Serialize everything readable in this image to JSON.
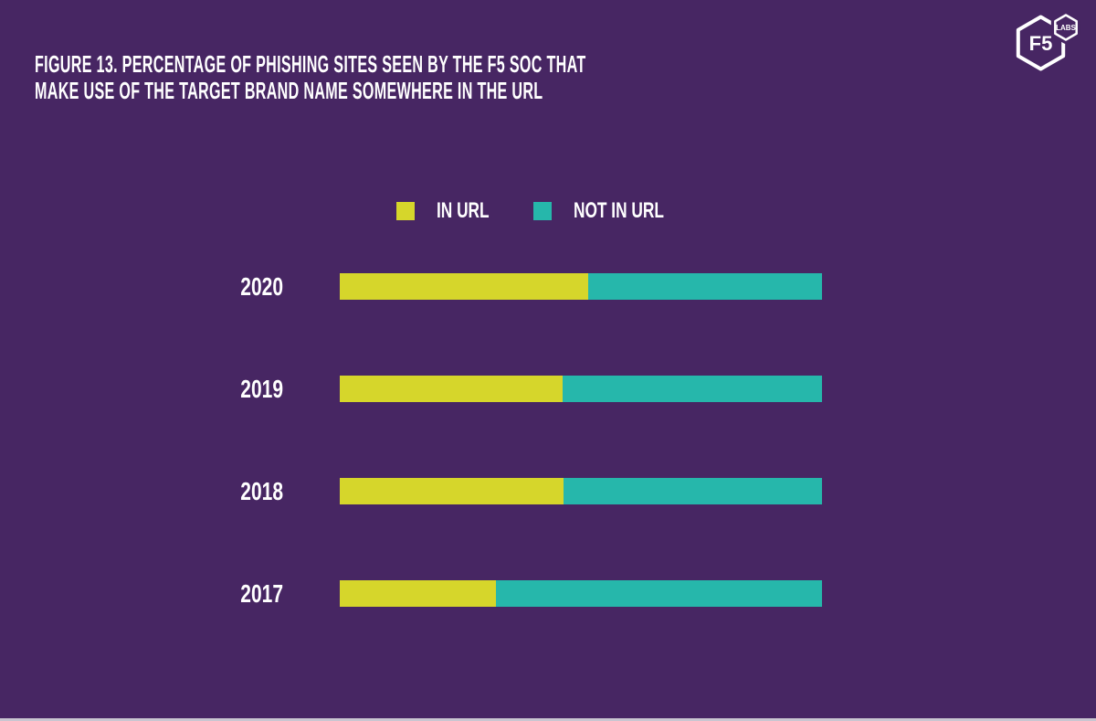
{
  "page": {
    "background_color": "#472663",
    "bottom_edge_color": "#c9c6d1",
    "text_color": "#ffffff"
  },
  "header": {
    "title_line1": "FIGURE 13. PERCENTAGE OF PHISHING SITES SEEN BY THE F5 SOC THAT",
    "title_line2": "MAKE USE OF THE TARGET BRAND NAME SOMEWHERE IN THE URL"
  },
  "logo": {
    "primary_text": "F5",
    "secondary_text": "LABS"
  },
  "legend": {
    "items": [
      {
        "label": "IN URL",
        "color": "#d6d62b"
      },
      {
        "label": "NOT IN URL",
        "color": "#26b7ab"
      }
    ]
  },
  "chart_data": {
    "type": "bar",
    "orientation": "horizontal",
    "stacked": true,
    "title": "Figure 13. Percentage of phishing sites seen by the F5 SOC that make use of the target brand name somewhere in the URL",
    "categories": [
      "2020",
      "2019",
      "2018",
      "2017"
    ],
    "series": [
      {
        "name": "IN URL",
        "color": "#d6d62b",
        "values": [
          51.5,
          46.2,
          46.4,
          32.4
        ]
      },
      {
        "name": "NOT IN URL",
        "color": "#26b7ab",
        "values": [
          48.5,
          53.8,
          53.6,
          67.6
        ]
      }
    ],
    "xlabel": "",
    "ylabel": "",
    "xlim": [
      0,
      100
    ],
    "units": "percent",
    "value_labels_shown": false,
    "grid": false,
    "legend_position": "top-center"
  }
}
